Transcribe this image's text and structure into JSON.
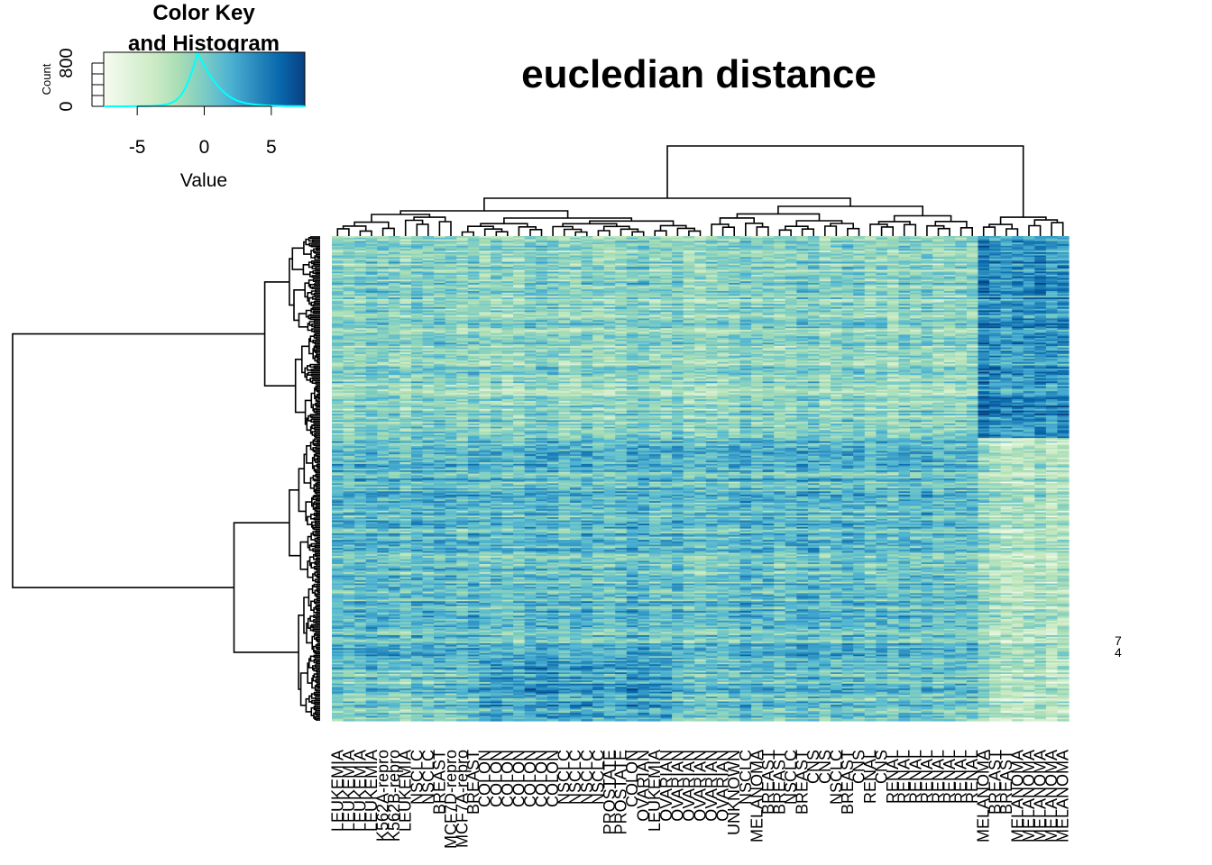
{
  "chart_data": {
    "type": "heatmap",
    "title": "eucledian distance",
    "color_key": {
      "title_line1": "Color Key",
      "title_line2": "and Histogram",
      "ylabel": "Count",
      "xlabel": "Value",
      "x_ticks": [
        "-5",
        "0",
        "5"
      ],
      "y_ticks": [
        "0",
        "800"
      ],
      "xlim": [
        -7.5,
        7.5
      ],
      "ylim": [
        0,
        1000
      ],
      "histogram_peak_value": -0.5,
      "histogram_peak_count": 1000,
      "palette": [
        "#f7fcf0",
        "#e0f3db",
        "#ccebc5",
        "#a8ddb5",
        "#7bccc4",
        "#4eb3d3",
        "#2b8cbe",
        "#0868ac",
        "#084081"
      ],
      "histogram_color": "#00ffff"
    },
    "column_labels": [
      "LEUKEMIA",
      "LEUKEMIA",
      "LEUKEMIA",
      "LEUKEMIA",
      "K562A-repro",
      "K562B-repro",
      "LEUKEMIA",
      "NSCLC",
      "NSCLC",
      "BREAST",
      "MCF7D-repro",
      "MCF7A-repro",
      "BREAST",
      "COLON",
      "COLON",
      "COLON",
      "COLON",
      "COLON",
      "COLON",
      "COLON",
      "NSCLC",
      "NSCLC",
      "NSCLC",
      "NSCLC",
      "PROSTATE",
      "PROSTATE",
      "COLON",
      "OVARIAN",
      "LEUKEMIA",
      "OVARIAN",
      "OVARIAN",
      "OVARIAN",
      "OVARIAN",
      "OVARIAN",
      "OVARIAN",
      "UNKNOWN",
      "NSCLC",
      "MELANOMA",
      "BREAST",
      "BREAST",
      "NSCLC",
      "BREAST",
      "CNS",
      "CNS",
      "NSCLC",
      "BREAST",
      "CNS",
      "RENAL",
      "CNS",
      "RENAL",
      "RENAL",
      "RENAL",
      "RENAL",
      "RENAL",
      "RENAL",
      "RENAL",
      "RENAL",
      "MELANOMA",
      "BREAST",
      "BREAST",
      "MELANOMA",
      "MELANOMA",
      "MELANOMA",
      "MELANOMA",
      "MELANOMA"
    ],
    "row_labels_visible": [
      "7",
      "4"
    ],
    "n_rows": 300,
    "n_columns": 65,
    "clusters": {
      "columns_top_split": [
        57,
        8
      ],
      "rows_top_split": [
        125,
        175
      ]
    }
  }
}
